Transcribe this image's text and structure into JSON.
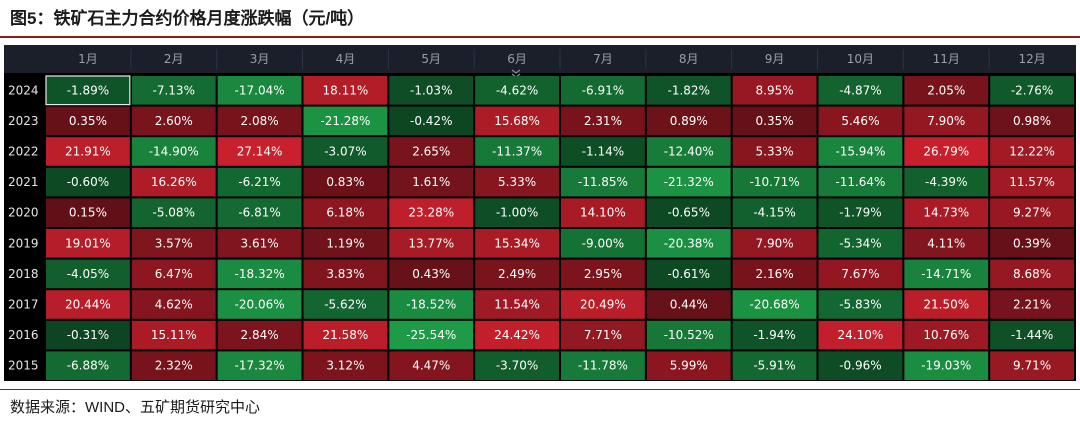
{
  "title": "图5：铁矿石主力合约价格月度涨跌幅（元/吨）",
  "source": "数据来源：WIND、五矿期货研究中心",
  "colors": {
    "up_strong": "#c8202c",
    "up_weak": "#5c0f16",
    "down_strong": "#1e9e48",
    "down_weak": "#0b3d1e",
    "header_bg": "#1a1f2a",
    "panel_bg": "#000000"
  },
  "chart_data": {
    "type": "heatmap",
    "unit": "%",
    "columns": [
      "1月",
      "2月",
      "3月",
      "4月",
      "5月",
      "6月",
      "7月",
      "8月",
      "9月",
      "10月",
      "11月",
      "12月"
    ],
    "rows": [
      "2024",
      "2023",
      "2022",
      "2021",
      "2020",
      "2019",
      "2018",
      "2017",
      "2016",
      "2015"
    ],
    "values": [
      [
        -1.89,
        -7.13,
        -17.04,
        18.11,
        -1.03,
        -4.62,
        -6.91,
        -1.82,
        8.95,
        -4.87,
        2.05,
        -2.76
      ],
      [
        0.35,
        2.6,
        2.08,
        -21.28,
        -0.42,
        15.68,
        2.31,
        0.89,
        0.35,
        5.46,
        7.9,
        0.98
      ],
      [
        21.91,
        -14.9,
        27.14,
        -3.07,
        2.65,
        -11.37,
        -1.14,
        -12.4,
        5.33,
        -15.94,
        26.79,
        12.22
      ],
      [
        -0.6,
        16.26,
        -6.21,
        0.83,
        1.61,
        5.33,
        -11.85,
        -21.32,
        -10.71,
        -11.64,
        -4.39,
        11.57
      ],
      [
        0.15,
        -5.08,
        -6.81,
        6.18,
        23.28,
        -1.0,
        14.1,
        -0.65,
        -4.15,
        -1.79,
        14.73,
        9.27
      ],
      [
        19.01,
        3.57,
        3.61,
        1.19,
        13.77,
        15.34,
        -9.0,
        -20.38,
        7.9,
        -5.34,
        4.11,
        0.39
      ],
      [
        -4.05,
        6.47,
        -18.32,
        3.83,
        0.43,
        2.49,
        2.95,
        -0.61,
        2.16,
        7.67,
        -14.71,
        8.68
      ],
      [
        20.44,
        4.62,
        -20.06,
        -5.62,
        -18.52,
        11.54,
        20.49,
        0.44,
        -20.68,
        -5.83,
        21.5,
        2.21
      ],
      [
        -0.31,
        15.11,
        2.84,
        21.58,
        -25.54,
        24.42,
        7.71,
        -10.52,
        -1.94,
        24.1,
        10.76,
        -1.44
      ],
      [
        -6.88,
        2.32,
        -17.32,
        3.12,
        4.47,
        -3.7,
        -11.78,
        5.99,
        -5.91,
        -0.96,
        -19.03,
        9.71
      ]
    ],
    "value_labels": [
      [
        "-1.89%",
        "-7.13%",
        "-17.04%",
        "18.11%",
        "-1.03%",
        "-4.62%",
        "-6.91%",
        "-1.82%",
        "8.95%",
        "-4.87%",
        "2.05%",
        "-2.76%"
      ],
      [
        "0.35%",
        "2.60%",
        "2.08%",
        "-21.28%",
        "-0.42%",
        "15.68%",
        "2.31%",
        "0.89%",
        "0.35%",
        "5.46%",
        "7.90%",
        "0.98%"
      ],
      [
        "21.91%",
        "-14.90%",
        "27.14%",
        "-3.07%",
        "2.65%",
        "-11.37%",
        "-1.14%",
        "-12.40%",
        "5.33%",
        "-15.94%",
        "26.79%",
        "12.22%"
      ],
      [
        "-0.60%",
        "16.26%",
        "-6.21%",
        "0.83%",
        "1.61%",
        "5.33%",
        "-11.85%",
        "-21.32%",
        "-10.71%",
        "-11.64%",
        "-4.39%",
        "11.57%"
      ],
      [
        "0.15%",
        "-5.08%",
        "-6.81%",
        "6.18%",
        "23.28%",
        "-1.00%",
        "14.10%",
        "-0.65%",
        "-4.15%",
        "-1.79%",
        "14.73%",
        "9.27%"
      ],
      [
        "19.01%",
        "3.57%",
        "3.61%",
        "1.19%",
        "13.77%",
        "15.34%",
        "-9.00%",
        "-20.38%",
        "7.90%",
        "-5.34%",
        "4.11%",
        "0.39%"
      ],
      [
        "-4.05%",
        "6.47%",
        "-18.32%",
        "3.83%",
        "0.43%",
        "2.49%",
        "2.95%",
        "-0.61%",
        "2.16%",
        "7.67%",
        "-14.71%",
        "8.68%"
      ],
      [
        "20.44%",
        "4.62%",
        "-20.06%",
        "-5.62%",
        "-18.52%",
        "11.54%",
        "20.49%",
        "0.44%",
        "-20.68%",
        "-5.83%",
        "21.50%",
        "2.21%"
      ],
      [
        "-0.31%",
        "15.11%",
        "2.84%",
        "21.58%",
        "-25.54%",
        "24.42%",
        "7.71%",
        "-10.52%",
        "-1.94%",
        "24.10%",
        "10.76%",
        "-1.44%"
      ],
      [
        "-6.88%",
        "2.32%",
        "-17.32%",
        "3.12%",
        "4.47%",
        "-3.70%",
        "-11.78%",
        "5.99%",
        "-5.91%",
        "-0.96%",
        "-19.03%",
        "9.71%"
      ]
    ],
    "selected_cell": {
      "row": "2024",
      "column": "1月"
    },
    "collapse_icon": "double-chevron-down-icon"
  }
}
